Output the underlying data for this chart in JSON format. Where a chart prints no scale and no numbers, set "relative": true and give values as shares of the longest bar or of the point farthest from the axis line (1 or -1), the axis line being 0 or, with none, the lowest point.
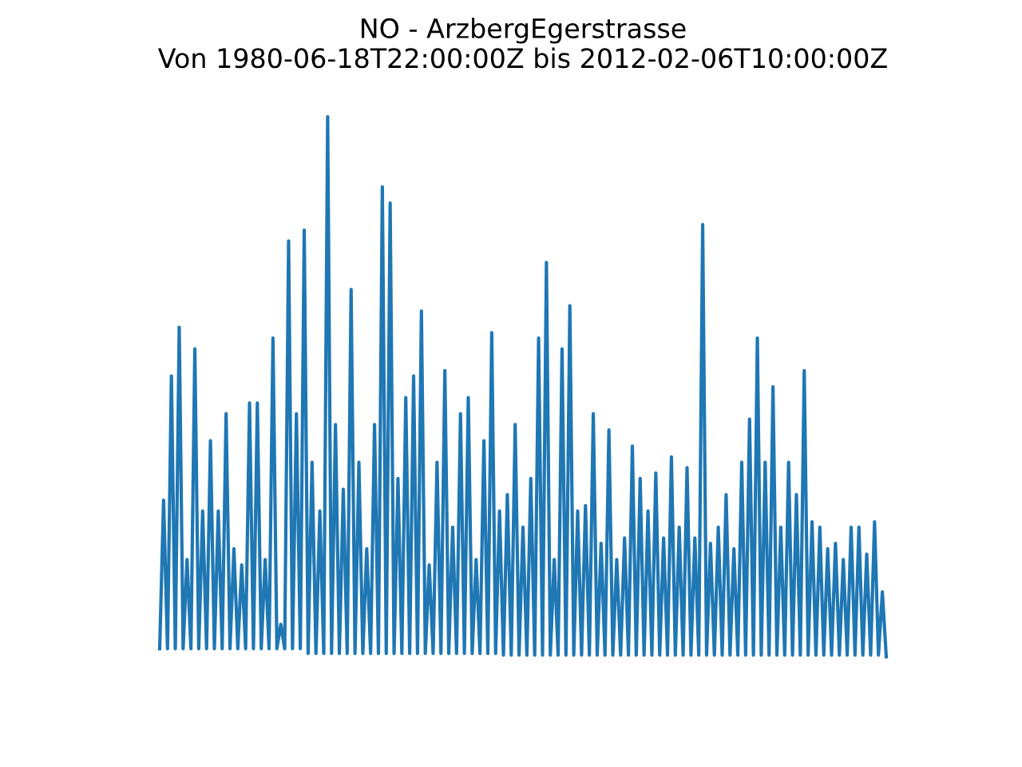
{
  "chart_data": {
    "type": "line",
    "title": "NO - ArzbergEgerstrasse\nVon 1980-06-18T22:00:00Z bis 2012-02-06T10:00:00Z",
    "relative": true,
    "color": "#1f77b4",
    "values": [
      0.015,
      0.29,
      0.015,
      0.52,
      0.015,
      0.61,
      0.015,
      0.18,
      0.015,
      0.57,
      0.015,
      0.27,
      0.015,
      0.4,
      0.015,
      0.27,
      0.015,
      0.45,
      0.015,
      0.2,
      0.015,
      0.17,
      0.015,
      0.47,
      0.015,
      0.47,
      0.015,
      0.18,
      0.015,
      0.59,
      0.015,
      0.06,
      0.015,
      0.77,
      0.015,
      0.45,
      0.015,
      0.79,
      0.006,
      0.36,
      0.006,
      0.27,
      0.006,
      1,
      0.006,
      0.43,
      0.006,
      0.31,
      0.006,
      0.68,
      0.006,
      0.36,
      0.006,
      0.2,
      0.006,
      0.43,
      0.006,
      0.87,
      0.006,
      0.84,
      0.006,
      0.33,
      0.006,
      0.48,
      0.006,
      0.52,
      0.006,
      0.64,
      0.006,
      0.17,
      0.006,
      0.36,
      0.006,
      0.53,
      0.006,
      0.24,
      0.006,
      0.45,
      0.006,
      0.48,
      0.006,
      0.18,
      0.006,
      0.4,
      0.006,
      0.6,
      0.006,
      0.27,
      0.003,
      0.3,
      0.003,
      0.43,
      0.003,
      0.24,
      0.003,
      0.33,
      0.003,
      0.59,
      0.003,
      0.73,
      0.003,
      0.18,
      0.003,
      0.57,
      0.003,
      0.65,
      0.003,
      0.27,
      0.003,
      0.28,
      0.003,
      0.45,
      0.003,
      0.21,
      0.003,
      0.42,
      0.003,
      0.18,
      0.003,
      0.22,
      0.003,
      0.39,
      0.003,
      0.33,
      0.003,
      0.27,
      0.003,
      0.34,
      0.003,
      0.22,
      0.003,
      0.37,
      0.003,
      0.24,
      0.003,
      0.35,
      0.003,
      0.22,
      0.003,
      0.8,
      0.003,
      0.21,
      0.003,
      0.24,
      0.003,
      0.3,
      0.003,
      0.2,
      0.003,
      0.36,
      0.003,
      0.44,
      0.003,
      0.59,
      0.003,
      0.36,
      0.003,
      0.5,
      0.003,
      0.24,
      0.003,
      0.36,
      0.003,
      0.3,
      0.003,
      0.53,
      0.003,
      0.25,
      0.003,
      0.24,
      0.003,
      0.2,
      0.003,
      0.21,
      0.003,
      0.18,
      0.003,
      0.24,
      0.003,
      0.24,
      0.003,
      0.19,
      0.003,
      0.25,
      0.003,
      0.12,
      0
    ],
    "categories": [
      null,
      null,
      null,
      null,
      null,
      null,
      null,
      null,
      null,
      null,
      null,
      null,
      null,
      null,
      null,
      null,
      null,
      null,
      null,
      null,
      null,
      null,
      null,
      null,
      null,
      null,
      null,
      null,
      null,
      null,
      null,
      null,
      null,
      null,
      null,
      null,
      null,
      null,
      null,
      null,
      null,
      null,
      null,
      null,
      null,
      null,
      null,
      null,
      null,
      null,
      null,
      null,
      null,
      null,
      null,
      null,
      null,
      null,
      null,
      null,
      null,
      null,
      null,
      null,
      null,
      null,
      null,
      null,
      null,
      null,
      null,
      null,
      null,
      null,
      null,
      null,
      null,
      null,
      null,
      null,
      null,
      null,
      null,
      null,
      null,
      null,
      null,
      null,
      null,
      null,
      null,
      null,
      null,
      null,
      null,
      null,
      null,
      null,
      null,
      null,
      null,
      null,
      null,
      null,
      null,
      null,
      null,
      null,
      null,
      null,
      null,
      null,
      null,
      null,
      null,
      null,
      null,
      null,
      null,
      null,
      null,
      null,
      null,
      null,
      null,
      null,
      null,
      null,
      null,
      null,
      null,
      null,
      null,
      null,
      null,
      null,
      null,
      null,
      null,
      null,
      null,
      null,
      null,
      null,
      null,
      null,
      null,
      null,
      null,
      null,
      null,
      null,
      null,
      null,
      null,
      null,
      null,
      null,
      null,
      null,
      null,
      null,
      null,
      null,
      null,
      null,
      null,
      null,
      null,
      null,
      null,
      null,
      null,
      null,
      null,
      null,
      null,
      null,
      null,
      null,
      null,
      null,
      null,
      null,
      null,
      null,
      null
    ]
  }
}
